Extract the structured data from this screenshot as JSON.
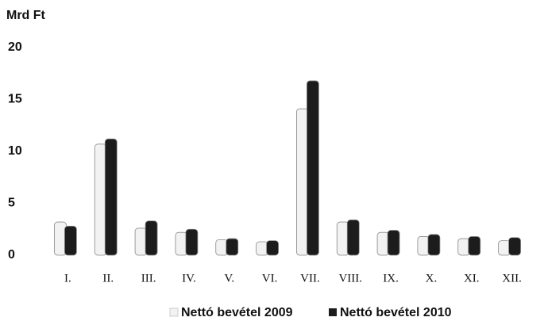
{
  "chart_data": {
    "type": "bar",
    "y_label": "Mrd Ft",
    "categories": [
      "I.",
      "II.",
      "III.",
      "IV.",
      "V.",
      "VI.",
      "VII.",
      "VIII.",
      "IX.",
      "X.",
      "XI.",
      "XII."
    ],
    "series": [
      {
        "name": "Nettó bevétel 2009",
        "color": "#f2f2f2",
        "values": [
          3.2,
          10.7,
          2.6,
          2.2,
          1.5,
          1.3,
          14.1,
          3.2,
          2.2,
          1.8,
          1.6,
          1.4
        ]
      },
      {
        "name": "Nettó bevétel 2010",
        "color": "#1c1c1c",
        "values": [
          2.8,
          11.2,
          3.3,
          2.5,
          1.6,
          1.4,
          16.8,
          3.4,
          2.4,
          2.0,
          1.8,
          1.7
        ]
      }
    ],
    "ylim": [
      0,
      20
    ],
    "yticks": [
      0,
      5,
      10,
      15,
      20
    ],
    "grid": false,
    "legend": "bottom"
  }
}
